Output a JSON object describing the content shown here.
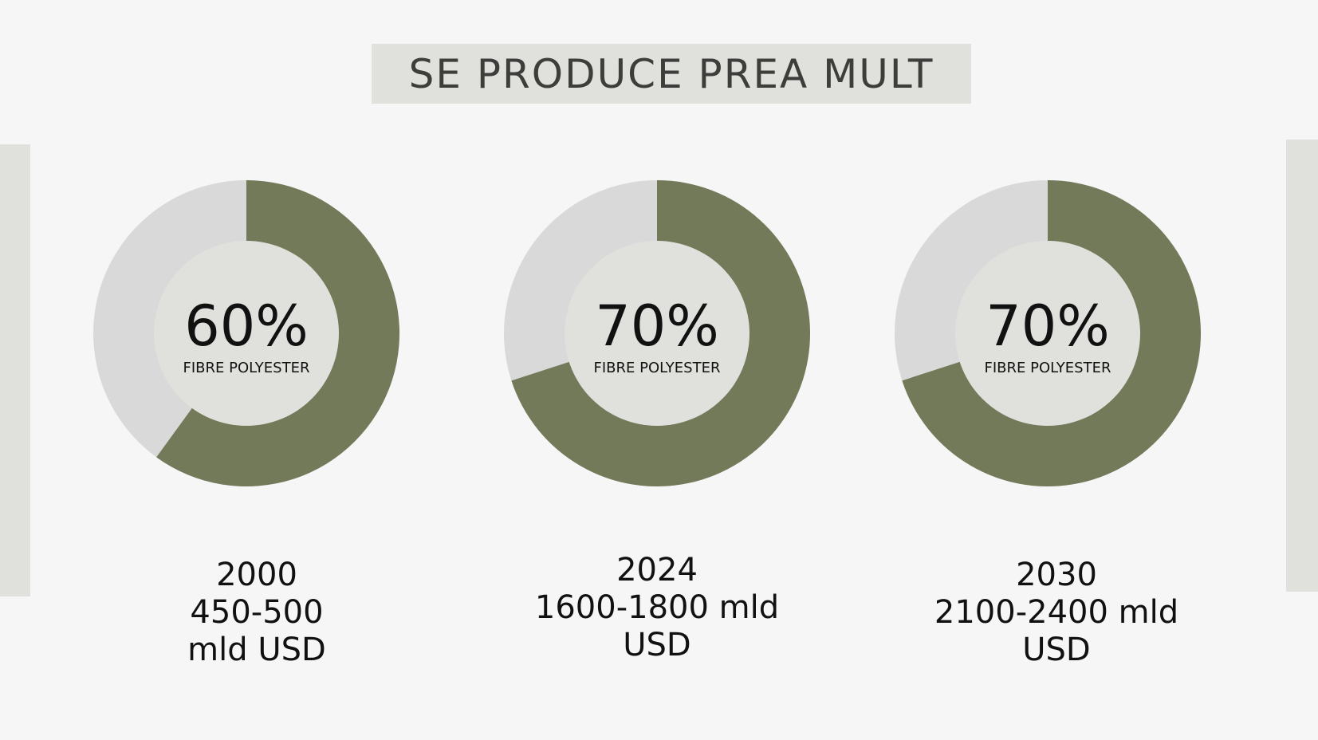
{
  "title": "SE PRODUCE PREA MULT",
  "colors": {
    "background": "#f6f6f6",
    "panel": "#e0e1dc",
    "filled": "#737a59",
    "track": "#d9d9d9",
    "inner": "#e0e1dc"
  },
  "chart_data": [
    {
      "type": "pie",
      "value_percent": 60,
      "center_value": "60%",
      "center_label": "FIBRE POLYESTER",
      "caption_lines": [
        "2000",
        "450-500",
        "mld USD"
      ]
    },
    {
      "type": "pie",
      "value_percent": 70,
      "center_value": "70%",
      "center_label": "FIBRE POLYESTER",
      "caption_lines": [
        "2024",
        "1600-1800 mld",
        "USD"
      ]
    },
    {
      "type": "pie",
      "value_percent": 70,
      "center_value": "70%",
      "center_label": "FIBRE POLYESTER",
      "caption_lines": [
        "2030",
        "2100-2400 mld",
        "USD"
      ]
    }
  ]
}
